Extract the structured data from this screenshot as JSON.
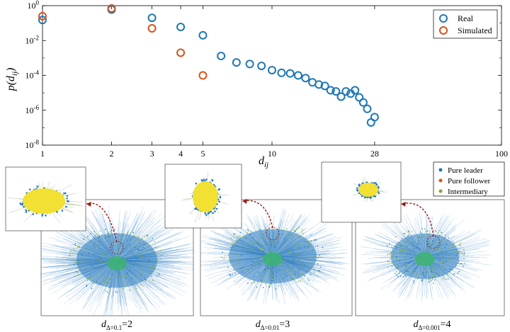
{
  "chart_data": {
    "type": "scatter",
    "ylabel": "p(d_ij)",
    "xlabel": "d_ij",
    "x_scale": "log",
    "y_scale": "log",
    "xlim": [
      1,
      100
    ],
    "ylim": [
      1e-08,
      1
    ],
    "x_ticks": [
      {
        "value": 1,
        "label": "1"
      },
      {
        "value": 2,
        "label": "2"
      },
      {
        "value": 3,
        "label": "3"
      },
      {
        "value": 4,
        "label": "4"
      },
      {
        "value": 5,
        "label": "5"
      },
      {
        "value": 10,
        "label": "10"
      },
      {
        "value": 28,
        "label": "28"
      },
      {
        "value": 100,
        "label": "100"
      }
    ],
    "y_ticks": [
      {
        "value": 1.0,
        "base": "10",
        "exp": "0"
      },
      {
        "value": 0.01,
        "base": "10",
        "exp": "-2"
      },
      {
        "value": 0.0001,
        "base": "10",
        "exp": "-4"
      },
      {
        "value": 1e-06,
        "base": "10",
        "exp": "-6"
      },
      {
        "value": 1e-08,
        "base": "10",
        "exp": "-8"
      }
    ],
    "legend_position": "top-right",
    "series": [
      {
        "name": "Real",
        "color": "#1f77b4",
        "points": [
          {
            "x": 1,
            "y": 0.15
          },
          {
            "x": 2,
            "y": 0.6
          },
          {
            "x": 3,
            "y": 0.2
          },
          {
            "x": 4,
            "y": 0.06
          },
          {
            "x": 5,
            "y": 0.02
          },
          {
            "x": 6,
            "y": 0.0013
          },
          {
            "x": 7,
            "y": 0.00055
          },
          {
            "x": 8,
            "y": 0.00045
          },
          {
            "x": 9,
            "y": 0.00035
          },
          {
            "x": 10,
            "y": 0.0002
          },
          {
            "x": 11,
            "y": 0.00014
          },
          {
            "x": 12,
            "y": 0.00013
          },
          {
            "x": 13,
            "y": 0.0001
          },
          {
            "x": 14,
            "y": 7e-05
          },
          {
            "x": 15,
            "y": 4e-05
          },
          {
            "x": 16,
            "y": 3e-05
          },
          {
            "x": 17,
            "y": 2.5e-05
          },
          {
            "x": 18,
            "y": 1.4e-05
          },
          {
            "x": 19,
            "y": 1.2e-05
          },
          {
            "x": 20,
            "y": 6e-06
          },
          {
            "x": 21,
            "y": 1.2e-05
          },
          {
            "x": 22,
            "y": 9e-06
          },
          {
            "x": 23,
            "y": 1.4e-05
          },
          {
            "x": 24,
            "y": 5.5e-06
          },
          {
            "x": 25,
            "y": 2.8e-06
          },
          {
            "x": 26,
            "y": 1.2e-06
          },
          {
            "x": 27,
            "y": 2e-07
          },
          {
            "x": 28,
            "y": 4e-07
          }
        ]
      },
      {
        "name": "Simulated",
        "color": "#d95319",
        "points": [
          {
            "x": 1,
            "y": 0.25
          },
          {
            "x": 2,
            "y": 0.7
          },
          {
            "x": 3,
            "y": 0.05
          },
          {
            "x": 4,
            "y": 0.002
          },
          {
            "x": 5,
            "y": 0.0001
          }
        ]
      }
    ]
  },
  "networks": {
    "legend": [
      {
        "name": "Pure leader",
        "color": "#1f77b4"
      },
      {
        "name": "Pure follower",
        "color": "#d95319"
      },
      {
        "name": "Intermediary",
        "color": "#77ac30"
      }
    ],
    "panels": [
      {
        "caption_sub": "Δ=0.1",
        "caption_value": "=2"
      },
      {
        "caption_sub": "Δ=0.01",
        "caption_value": "=3"
      },
      {
        "caption_sub": "Δ=0.001",
        "caption_value": "=4"
      }
    ],
    "caption_symbol": "d",
    "colors": {
      "link": "#2a7bbf",
      "core": "#3cb371",
      "inset_core": "#f2e033",
      "arrow": "#a01818"
    }
  }
}
